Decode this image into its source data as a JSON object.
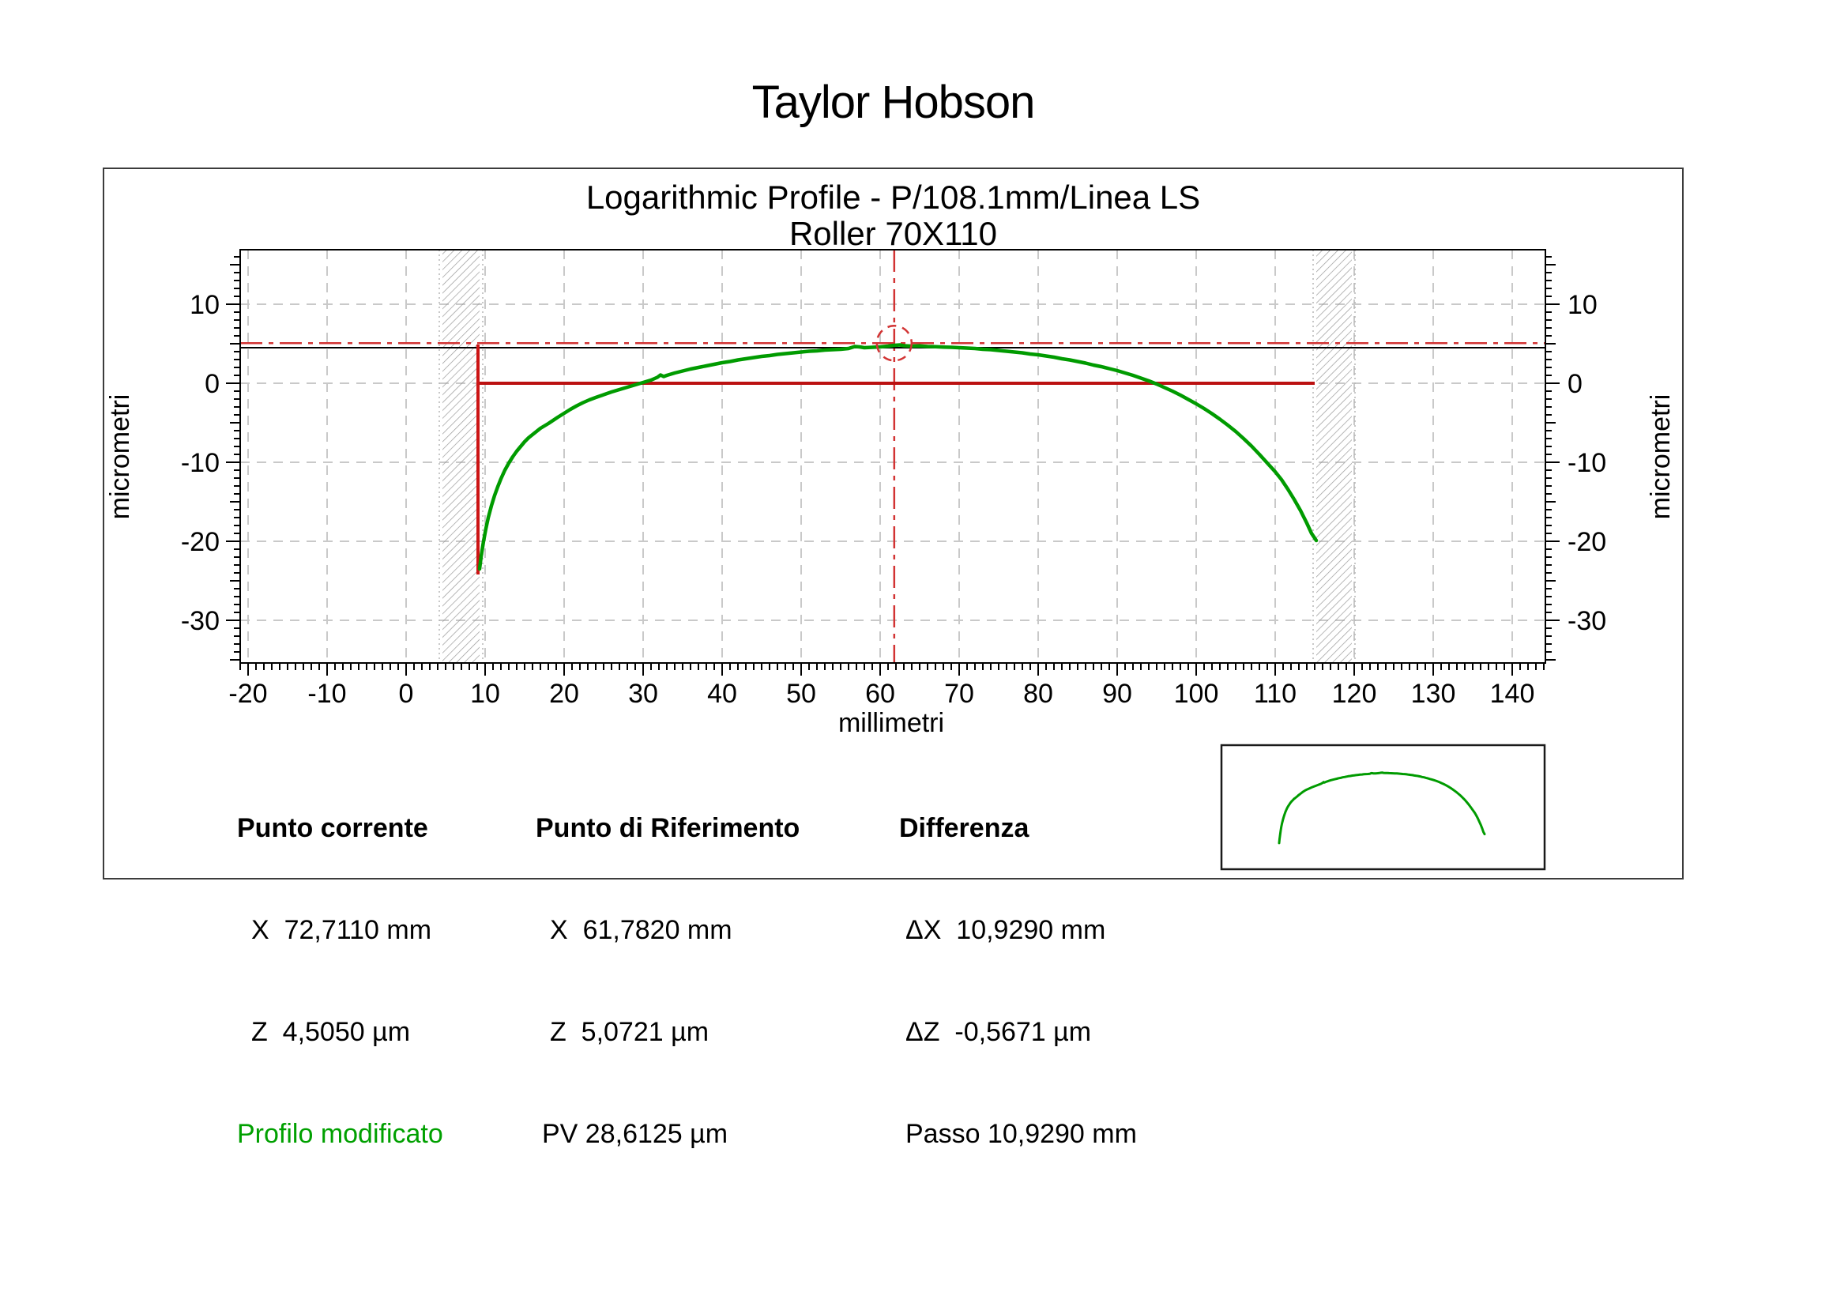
{
  "page_title": "Taylor Hobson",
  "chart": {
    "title_line1": "Logarithmic Profile - P/108.1mm/Linea LS",
    "title_line2": "Roller 70X110",
    "x_axis_label": "millimetri",
    "y_axis_label": "micrometri"
  },
  "info": {
    "current": {
      "header": "Punto corrente",
      "rows": [
        "X  72,7110 mm",
        "Z  4,5050 µm"
      ],
      "note": "Profilo modificato"
    },
    "reference": {
      "header": "Punto di Riferimento",
      "rows": [
        "X  61,7820 mm",
        "Z  5,0721 µm",
        "PV 28,6125 µm"
      ]
    },
    "difference": {
      "header": "Differenza",
      "rows": [
        "ΔX  10,9290 mm",
        "ΔZ  -0,5671 µm",
        "Passo 10,9290 mm"
      ]
    }
  },
  "colors": {
    "profile_green": "#009b00",
    "datum_red": "#bb1111",
    "ref_red": "#d23434",
    "current_black": "#000000",
    "grid_gray": "#c9c9c9",
    "hatch_gray": "#999999"
  },
  "chart_data": {
    "type": "line",
    "title": "Logarithmic Profile - P/108.1mm/Linea LS / Roller 70X110",
    "xlabel": "millimetri",
    "ylabel": "micrometri",
    "xlim": [
      -21.0,
      144.2
    ],
    "ylim": [
      -35.4,
      16.9
    ],
    "x_major_ticks": [
      -20,
      -10,
      0,
      10,
      20,
      30,
      40,
      50,
      60,
      70,
      80,
      90,
      100,
      110,
      120,
      130,
      140
    ],
    "y_major_ticks": [
      10,
      0,
      -10,
      -20,
      -30
    ],
    "x_minor_step": 1,
    "y_minor_step": 1,
    "grid": true,
    "legend": false,
    "series": [
      {
        "name": "Profilo modificato",
        "color": "#009b00",
        "points": [
          [
            9.3,
            -23.5
          ],
          [
            9.5,
            -21.9
          ],
          [
            9.8,
            -20.0
          ],
          [
            10.1,
            -18.4
          ],
          [
            10.4,
            -17.0
          ],
          [
            10.8,
            -15.5
          ],
          [
            11.2,
            -14.2
          ],
          [
            11.6,
            -13.1
          ],
          [
            12,
            -12.1
          ],
          [
            12.5,
            -11.0
          ],
          [
            13,
            -10.1
          ],
          [
            13.5,
            -9.3
          ],
          [
            14,
            -8.6
          ],
          [
            14.5,
            -8.0
          ],
          [
            15,
            -7.4
          ],
          [
            15.5,
            -6.9
          ],
          [
            16,
            -6.5
          ],
          [
            16.5,
            -6.1
          ],
          [
            17,
            -5.7
          ],
          [
            17.5,
            -5.4
          ],
          [
            18,
            -5.1
          ],
          [
            18.6,
            -4.7
          ],
          [
            19.2,
            -4.3
          ],
          [
            20,
            -3.8
          ],
          [
            20.8,
            -3.3
          ],
          [
            21.6,
            -2.85
          ],
          [
            22.4,
            -2.45
          ],
          [
            23.2,
            -2.1
          ],
          [
            24,
            -1.8
          ],
          [
            25,
            -1.45
          ],
          [
            26,
            -1.1
          ],
          [
            27,
            -0.8
          ],
          [
            28,
            -0.5
          ],
          [
            29,
            -0.2
          ],
          [
            30,
            0.1
          ],
          [
            31,
            0.4
          ],
          [
            31.8,
            0.75
          ],
          [
            32.2,
            1.05
          ],
          [
            32.6,
            0.85
          ],
          [
            33,
            1.0
          ],
          [
            34,
            1.3
          ],
          [
            35,
            1.55
          ],
          [
            36,
            1.8
          ],
          [
            37,
            2.0
          ],
          [
            38,
            2.2
          ],
          [
            39,
            2.4
          ],
          [
            40,
            2.6
          ],
          [
            41,
            2.75
          ],
          [
            42,
            2.95
          ],
          [
            43,
            3.1
          ],
          [
            44,
            3.25
          ],
          [
            45,
            3.4
          ],
          [
            46,
            3.5
          ],
          [
            47,
            3.65
          ],
          [
            48,
            3.75
          ],
          [
            49,
            3.85
          ],
          [
            50,
            3.95
          ],
          [
            51,
            4.05
          ],
          [
            52,
            4.1
          ],
          [
            53,
            4.2
          ],
          [
            54,
            4.25
          ],
          [
            55,
            4.3
          ],
          [
            56,
            4.4
          ],
          [
            56.8,
            4.65
          ],
          [
            57.4,
            4.6
          ],
          [
            58,
            4.5
          ],
          [
            59,
            4.55
          ],
          [
            60,
            4.6
          ],
          [
            61,
            4.7
          ],
          [
            61.8,
            4.8
          ],
          [
            62.5,
            4.85
          ],
          [
            63,
            4.75
          ],
          [
            64,
            4.7
          ],
          [
            65,
            4.72
          ],
          [
            66,
            4.65
          ],
          [
            67,
            4.62
          ],
          [
            68,
            4.58
          ],
          [
            69,
            4.55
          ],
          [
            70,
            4.5
          ],
          [
            71,
            4.45
          ],
          [
            72,
            4.4
          ],
          [
            73,
            4.3
          ],
          [
            74,
            4.25
          ],
          [
            75,
            4.15
          ],
          [
            76,
            4.05
          ],
          [
            77,
            3.95
          ],
          [
            78,
            3.85
          ],
          [
            79,
            3.7
          ],
          [
            80,
            3.6
          ],
          [
            81,
            3.45
          ],
          [
            82,
            3.3
          ],
          [
            83,
            3.1
          ],
          [
            84,
            2.95
          ],
          [
            85,
            2.75
          ],
          [
            86,
            2.55
          ],
          [
            87,
            2.3
          ],
          [
            88,
            2.1
          ],
          [
            89,
            1.85
          ],
          [
            90,
            1.6
          ],
          [
            91,
            1.3
          ],
          [
            92,
            1.0
          ],
          [
            93,
            0.65
          ],
          [
            94,
            0.3
          ],
          [
            95,
            -0.1
          ],
          [
            96,
            -0.55
          ],
          [
            97,
            -1.0
          ],
          [
            98,
            -1.5
          ],
          [
            99,
            -2.05
          ],
          [
            100,
            -2.6
          ],
          [
            101,
            -3.2
          ],
          [
            102,
            -3.85
          ],
          [
            103,
            -4.55
          ],
          [
            104,
            -5.3
          ],
          [
            105,
            -6.1
          ],
          [
            106,
            -7.0
          ],
          [
            107,
            -7.95
          ],
          [
            108,
            -9.0
          ],
          [
            109,
            -10.1
          ],
          [
            110,
            -11.2
          ],
          [
            110.8,
            -12.2
          ],
          [
            111.6,
            -13.4
          ],
          [
            112.4,
            -14.7
          ],
          [
            113.2,
            -16.1
          ],
          [
            114,
            -17.7
          ],
          [
            114.6,
            -19.0
          ],
          [
            115.0,
            -19.6
          ],
          [
            115.2,
            -19.9
          ]
        ]
      }
    ],
    "annotations": {
      "datum_line": {
        "z": 0,
        "x1": 9.1,
        "x2": 115.0
      },
      "start_bar": {
        "x": 9.1,
        "z1": 4.9,
        "z2": -24.2
      },
      "current_z_line": 4.505,
      "reference_z_line": 5.0721,
      "reference_x_line": 61.782,
      "reference_circle": {
        "x": 61.782,
        "z": 5.0721
      },
      "cutoff_bands": [
        [
          4.6,
          9.3
        ],
        [
          115.2,
          119.7
        ]
      ]
    }
  }
}
